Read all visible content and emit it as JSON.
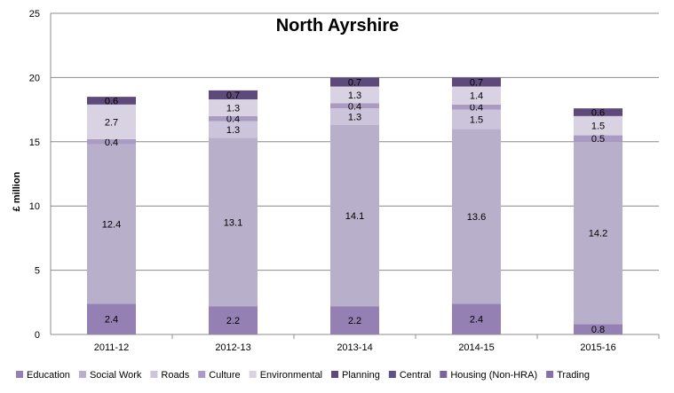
{
  "chart_data": {
    "type": "bar",
    "stacked": true,
    "title": "North Ayrshire",
    "xlabel": "",
    "ylabel": "£ million",
    "ylim": [
      0,
      25
    ],
    "yticks": [
      0,
      5,
      10,
      15,
      20,
      25
    ],
    "grid": true,
    "legend_position": "bottom",
    "categories": [
      "2011-12",
      "2012-13",
      "2013-14",
      "2014-15",
      "2015-16"
    ],
    "series": [
      {
        "name": "Education",
        "color": "#9580B4",
        "values": [
          2.4,
          2.2,
          2.2,
          2.4,
          0.8
        ]
      },
      {
        "name": "Social Work",
        "color": "#B8AFCA",
        "values": [
          12.4,
          13.1,
          14.1,
          13.6,
          14.2
        ]
      },
      {
        "name": "Roads",
        "color": "#CCC4DB",
        "values": [
          0,
          1.3,
          1.3,
          1.5,
          0
        ]
      },
      {
        "name": "Culture",
        "color": "#A99BC2",
        "values": [
          0.4,
          0.4,
          0.4,
          0.4,
          0.5
        ]
      },
      {
        "name": "Environmental",
        "color": "#D9D2E3",
        "values": [
          2.7,
          1.3,
          1.3,
          1.4,
          1.5
        ]
      },
      {
        "name": "Planning",
        "color": "#5E4A7A",
        "values": [
          0.6,
          0.7,
          0.7,
          0.7,
          0.6
        ]
      },
      {
        "name": "Central",
        "color": "#60508A",
        "values": [
          0,
          0,
          0,
          0,
          0
        ]
      },
      {
        "name": "Housing (Non-HRA)",
        "color": "#786499",
        "values": [
          0,
          0,
          0,
          0,
          0
        ]
      },
      {
        "name": "Trading",
        "color": "#8770A8",
        "values": [
          0,
          0,
          0,
          0,
          0
        ]
      }
    ]
  }
}
